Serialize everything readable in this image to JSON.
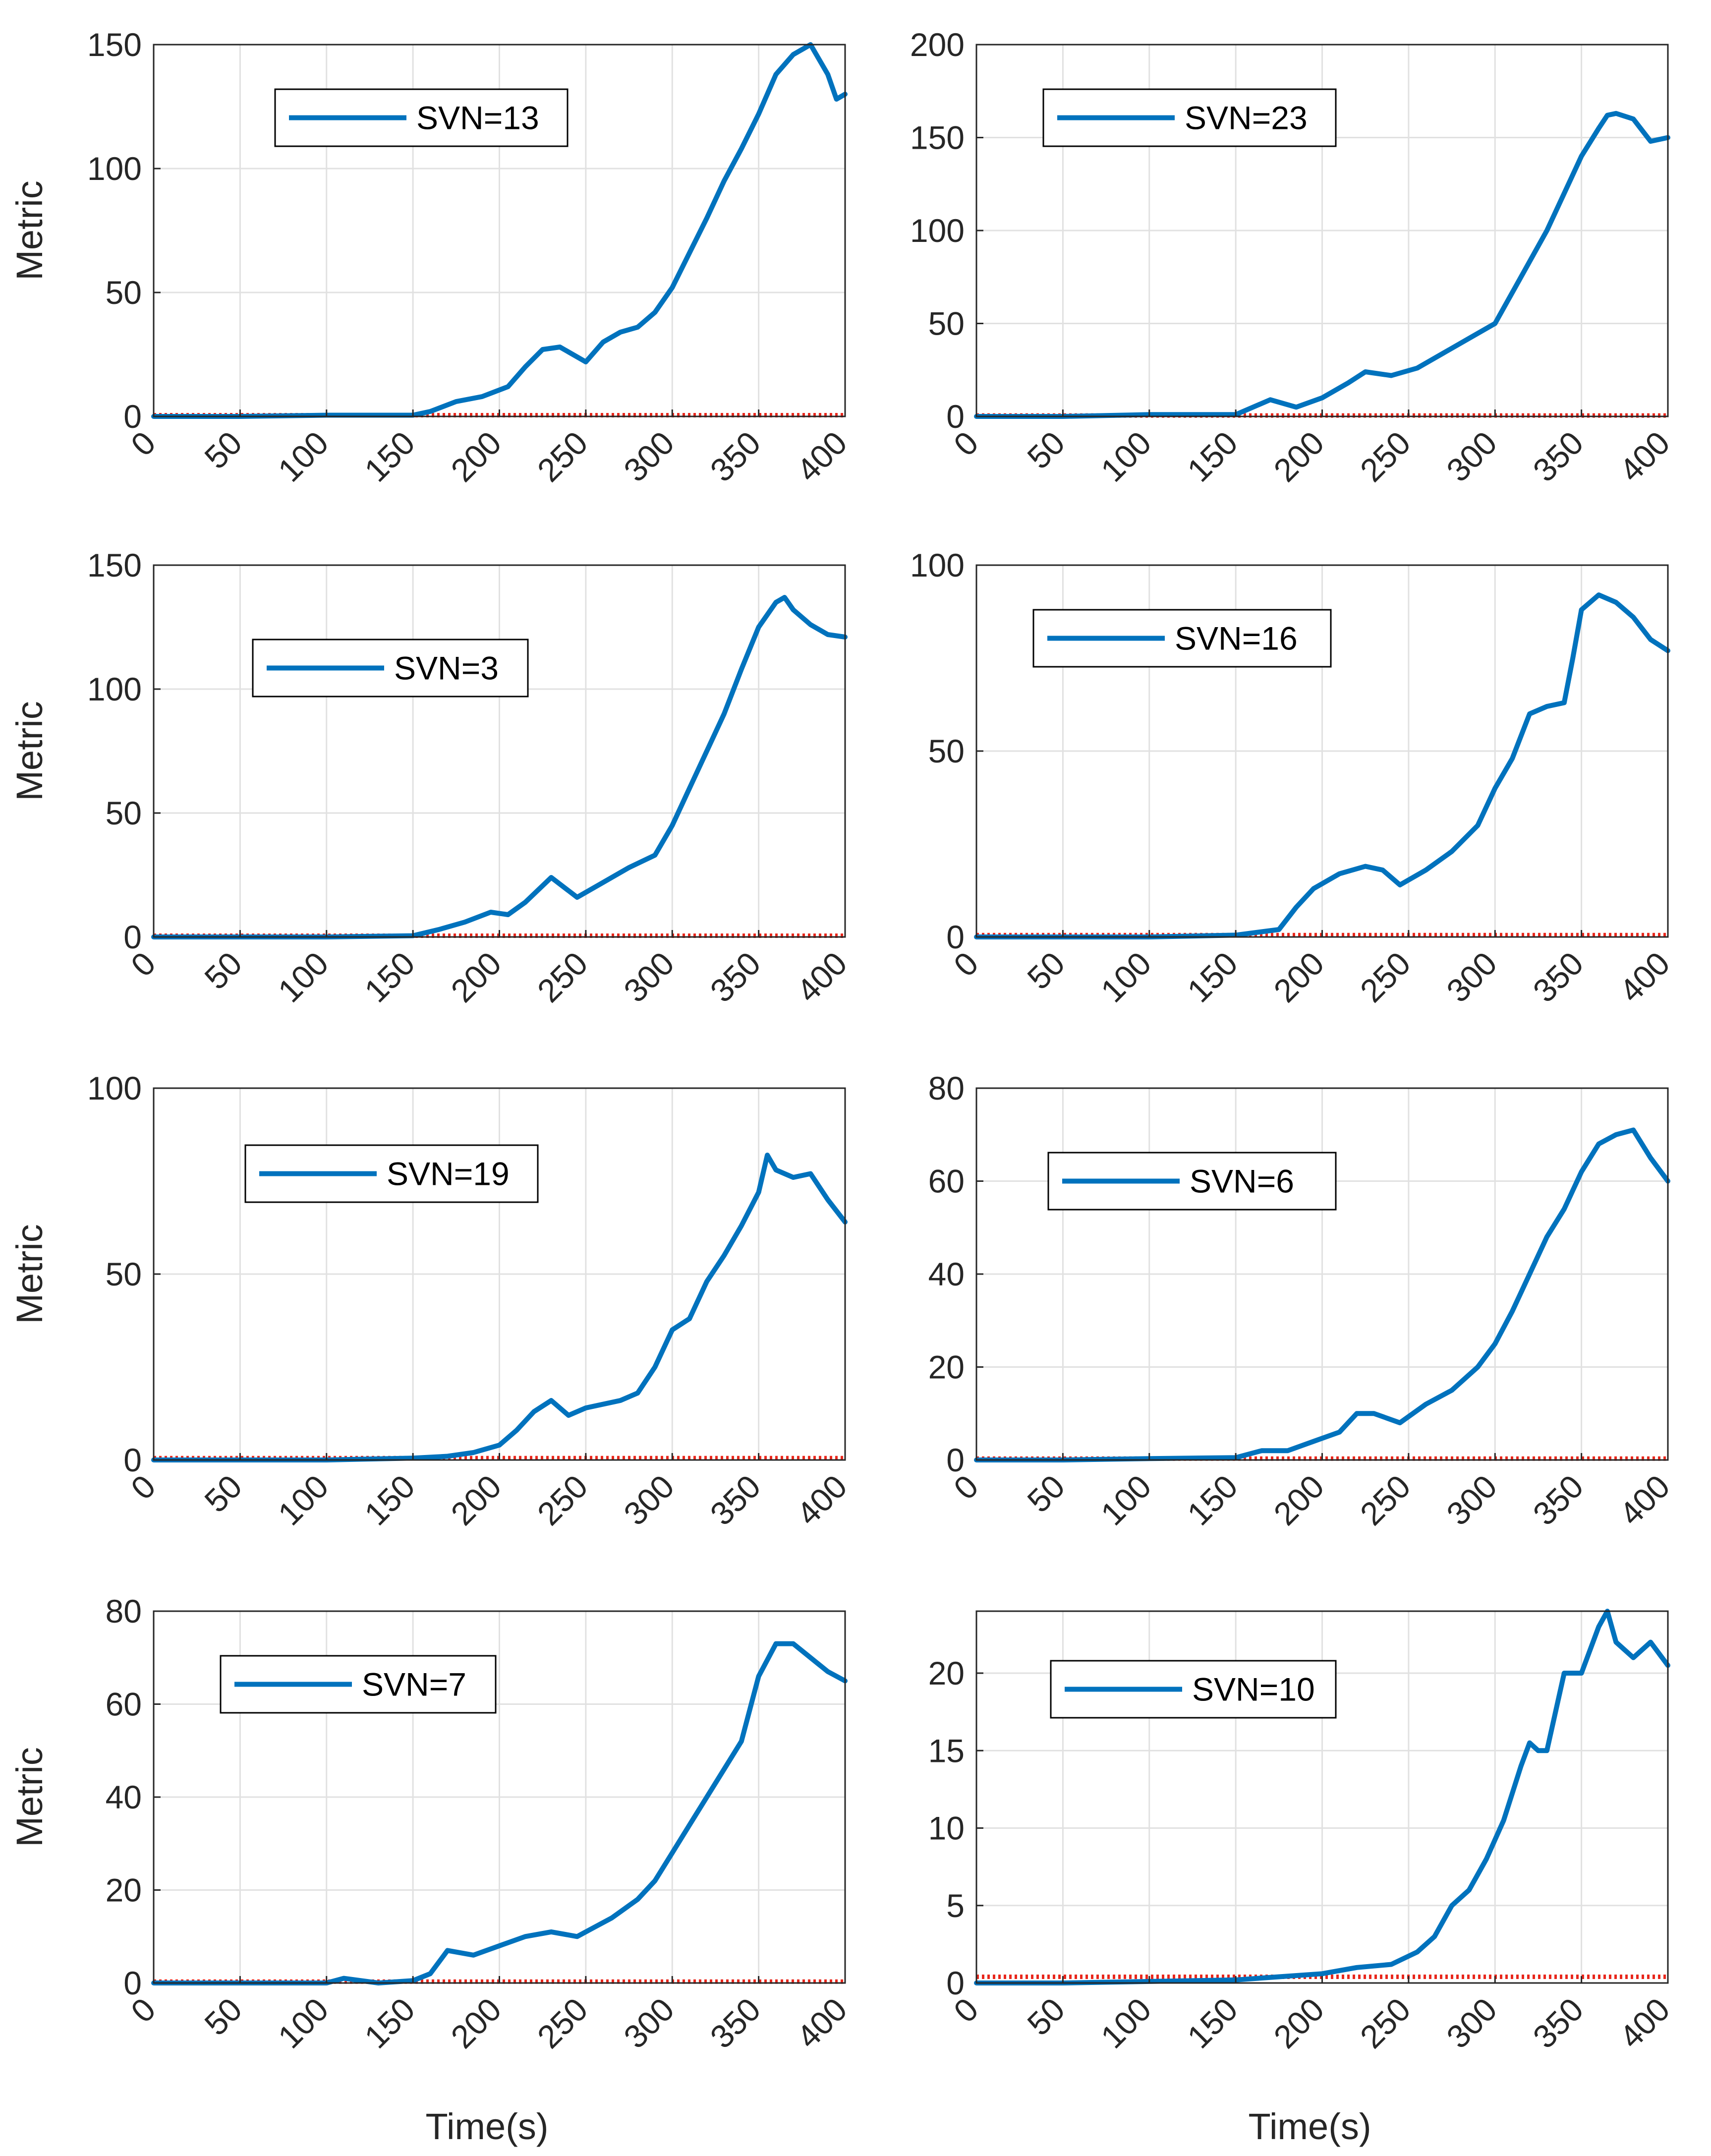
{
  "colors": {
    "series": "#0072BD",
    "threshold": "#E8271C",
    "grid": "#E1E1E1",
    "axis": "#262626"
  },
  "labels": {
    "xlabel": "Time(s)",
    "ylabel": "Metric"
  },
  "chart_data": [
    {
      "type": "line",
      "legend": "SVN=13",
      "legend_position": "top-left",
      "xlim": [
        0,
        400
      ],
      "ylim": [
        0,
        150
      ],
      "xticks": [
        0,
        50,
        100,
        150,
        200,
        250,
        300,
        350,
        400
      ],
      "yticks": [
        0,
        50,
        100,
        150
      ],
      "ylabel": "Metric",
      "xlabel": "",
      "threshold": 0.5,
      "x": [
        0,
        50,
        100,
        150,
        160,
        175,
        190,
        205,
        215,
        225,
        235,
        250,
        260,
        270,
        280,
        290,
        300,
        310,
        320,
        330,
        340,
        350,
        360,
        370,
        380,
        390,
        395,
        400
      ],
      "y": [
        0,
        0,
        0.5,
        0.5,
        2,
        6,
        8,
        12,
        20,
        27,
        28,
        22,
        30,
        34,
        36,
        42,
        52,
        66,
        80,
        95,
        108,
        122,
        138,
        146,
        150,
        138,
        128,
        130
      ]
    },
    {
      "type": "line",
      "legend": "SVN=23",
      "legend_position": "top-left",
      "xlim": [
        0,
        400
      ],
      "ylim": [
        0,
        200
      ],
      "xticks": [
        0,
        50,
        100,
        150,
        200,
        250,
        300,
        350,
        400
      ],
      "yticks": [
        0,
        50,
        100,
        150,
        200
      ],
      "ylabel": "",
      "xlabel": "",
      "threshold": 0.5,
      "x": [
        0,
        50,
        100,
        150,
        170,
        185,
        200,
        215,
        225,
        240,
        255,
        270,
        285,
        300,
        315,
        330,
        340,
        350,
        360,
        365,
        370,
        380,
        390,
        400
      ],
      "y": [
        0,
        0,
        1,
        1,
        9,
        5,
        10,
        18,
        24,
        22,
        26,
        34,
        42,
        50,
        75,
        100,
        120,
        140,
        155,
        162,
        163,
        160,
        148,
        150
      ]
    },
    {
      "type": "line",
      "legend": "SVN=3",
      "legend_position": "top-left",
      "xlim": [
        0,
        400
      ],
      "ylim": [
        0,
        150
      ],
      "xticks": [
        0,
        50,
        100,
        150,
        200,
        250,
        300,
        350,
        400
      ],
      "yticks": [
        0,
        50,
        100,
        150
      ],
      "ylabel": "Metric",
      "xlabel": "",
      "threshold": 0.5,
      "x": [
        0,
        50,
        100,
        150,
        165,
        180,
        195,
        205,
        215,
        230,
        245,
        260,
        275,
        290,
        300,
        310,
        320,
        330,
        340,
        350,
        360,
        365,
        370,
        380,
        390,
        400
      ],
      "y": [
        0,
        0,
        0,
        0.5,
        3,
        6,
        10,
        9,
        14,
        24,
        16,
        22,
        28,
        33,
        45,
        60,
        75,
        90,
        108,
        125,
        135,
        137,
        132,
        126,
        122,
        121
      ]
    },
    {
      "type": "line",
      "legend": "SVN=16",
      "legend_position": "top-left",
      "xlim": [
        0,
        400
      ],
      "ylim": [
        0,
        100
      ],
      "xticks": [
        0,
        50,
        100,
        150,
        200,
        250,
        300,
        350,
        400
      ],
      "yticks": [
        0,
        50,
        100
      ],
      "ylabel": "",
      "xlabel": "",
      "threshold": 0.5,
      "x": [
        0,
        50,
        100,
        150,
        175,
        185,
        195,
        210,
        225,
        235,
        245,
        260,
        275,
        290,
        300,
        310,
        320,
        330,
        340,
        345,
        350,
        360,
        370,
        380,
        390,
        400
      ],
      "y": [
        0,
        0,
        0,
        0.5,
        2,
        8,
        13,
        17,
        19,
        18,
        14,
        18,
        23,
        30,
        40,
        48,
        60,
        62,
        63,
        75,
        88,
        92,
        90,
        86,
        80,
        77
      ]
    },
    {
      "type": "line",
      "legend": "SVN=19",
      "legend_position": "top-left",
      "xlim": [
        0,
        400
      ],
      "ylim": [
        0,
        100
      ],
      "xticks": [
        0,
        50,
        100,
        150,
        200,
        250,
        300,
        350,
        400
      ],
      "yticks": [
        0,
        50,
        100
      ],
      "ylabel": "Metric",
      "xlabel": "",
      "threshold": 0.5,
      "x": [
        0,
        50,
        100,
        150,
        170,
        185,
        200,
        210,
        220,
        230,
        240,
        250,
        260,
        270,
        280,
        290,
        300,
        310,
        320,
        330,
        340,
        350,
        355,
        360,
        370,
        380,
        390,
        400
      ],
      "y": [
        0,
        0,
        0,
        0.5,
        1,
        2,
        4,
        8,
        13,
        16,
        12,
        14,
        15,
        16,
        18,
        25,
        35,
        38,
        48,
        55,
        63,
        72,
        82,
        78,
        76,
        77,
        70,
        64
      ]
    },
    {
      "type": "line",
      "legend": "SVN=6",
      "legend_position": "top-left",
      "xlim": [
        0,
        400
      ],
      "ylim": [
        0,
        80
      ],
      "xticks": [
        0,
        50,
        100,
        150,
        200,
        250,
        300,
        350,
        400
      ],
      "yticks": [
        0,
        20,
        40,
        60,
        80
      ],
      "ylabel": "",
      "xlabel": "",
      "threshold": 0.3,
      "x": [
        0,
        50,
        100,
        150,
        165,
        180,
        195,
        210,
        220,
        230,
        245,
        260,
        275,
        290,
        300,
        310,
        320,
        330,
        340,
        350,
        360,
        370,
        380,
        390,
        400
      ],
      "y": [
        0,
        0,
        0.3,
        0.5,
        2,
        2,
        4,
        6,
        10,
        10,
        8,
        12,
        15,
        20,
        25,
        32,
        40,
        48,
        54,
        62,
        68,
        70,
        71,
        65,
        60
      ]
    },
    {
      "type": "line",
      "legend": "SVN=7",
      "legend_position": "top-left",
      "xlim": [
        0,
        400
      ],
      "ylim": [
        0,
        80
      ],
      "xticks": [
        0,
        50,
        100,
        150,
        200,
        250,
        300,
        350,
        400
      ],
      "yticks": [
        0,
        20,
        40,
        60,
        80
      ],
      "ylabel": "Metric",
      "xlabel": "Time(s)",
      "threshold": 0.3,
      "x": [
        0,
        50,
        100,
        110,
        130,
        150,
        160,
        170,
        185,
        200,
        215,
        230,
        245,
        255,
        265,
        280,
        290,
        300,
        310,
        320,
        330,
        340,
        350,
        360,
        370,
        380,
        390,
        400
      ],
      "y": [
        0,
        0,
        0,
        1,
        0,
        0.5,
        2,
        7,
        6,
        8,
        10,
        11,
        10,
        12,
        14,
        18,
        22,
        28,
        34,
        40,
        46,
        52,
        66,
        73,
        73,
        70,
        67,
        65
      ]
    },
    {
      "type": "line",
      "legend": "SVN=10",
      "legend_position": "top-left",
      "xlim": [
        0,
        400
      ],
      "ylim": [
        0,
        24
      ],
      "xticks": [
        0,
        50,
        100,
        150,
        200,
        250,
        300,
        350,
        400
      ],
      "yticks": [
        0,
        5,
        10,
        15,
        20
      ],
      "ylabel": "",
      "xlabel": "Time(s)",
      "threshold": 0.4,
      "x": [
        0,
        50,
        100,
        150,
        175,
        200,
        220,
        240,
        255,
        265,
        275,
        285,
        295,
        305,
        315,
        320,
        325,
        330,
        340,
        350,
        360,
        365,
        370,
        380,
        390,
        400
      ],
      "y": [
        0,
        0,
        0.1,
        0.2,
        0.4,
        0.6,
        1,
        1.2,
        2,
        3,
        5,
        6,
        8,
        10.5,
        14,
        15.5,
        15,
        15,
        20,
        20,
        23,
        24,
        22,
        21,
        22,
        20.5
      ]
    }
  ]
}
